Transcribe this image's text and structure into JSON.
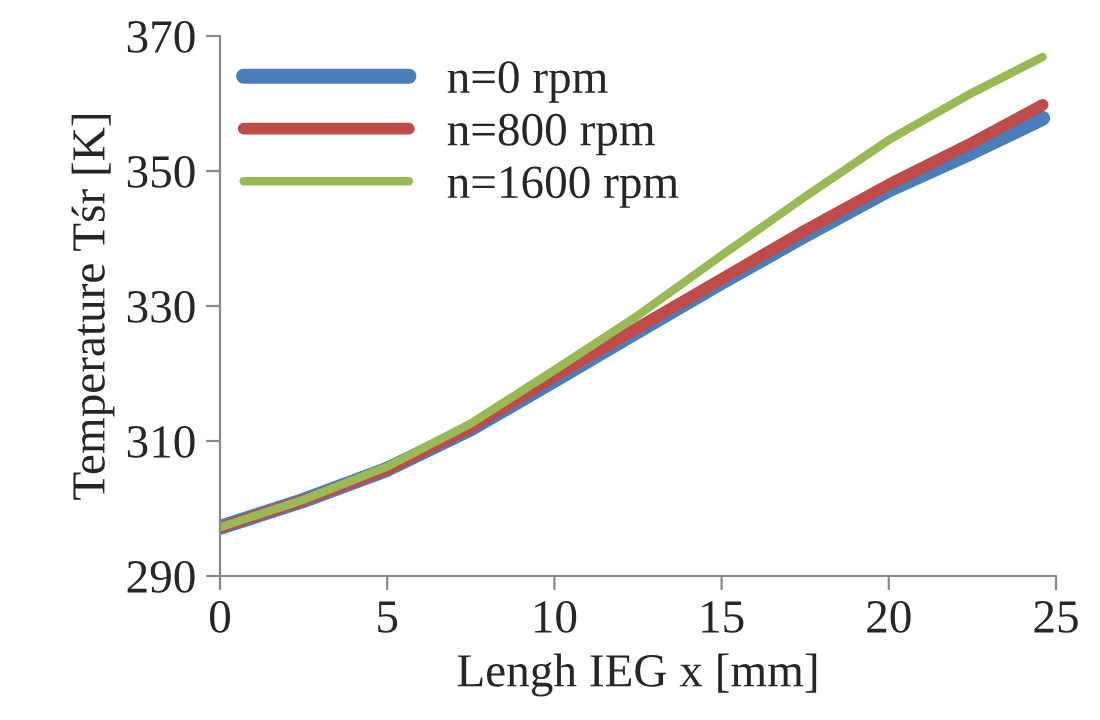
{
  "chart_data": {
    "type": "line",
    "xlabel": "Lengh IEG x [mm]",
    "ylabel": "Temperature Tśr [K]",
    "xlim": [
      0,
      25
    ],
    "xticks": [
      0,
      5,
      10,
      15,
      20,
      25
    ],
    "ylim": [
      290,
      370
    ],
    "yticks": [
      290,
      310,
      330,
      350,
      370
    ],
    "grid": false,
    "legend": "top left",
    "marker": "none",
    "line_style": "solid",
    "series": [
      {
        "name": "n=0 rpm",
        "color": "#4a7ebb",
        "x": [
          0,
          2.5,
          5,
          7.5,
          10,
          12.5,
          15,
          17.5,
          20,
          22.5,
          24.6
        ],
        "values": [
          297.2,
          301.2,
          305.8,
          311.8,
          319,
          326.3,
          333.5,
          340.5,
          347.2,
          352.8,
          357.8
        ]
      },
      {
        "name": "n=800 rpm",
        "color": "#be4b48",
        "x": [
          0,
          2.5,
          5,
          7.5,
          10,
          12.5,
          15,
          17.5,
          20,
          22.5,
          24.6
        ],
        "values": [
          297.2,
          301.2,
          305.8,
          312,
          319.6,
          326.8,
          334,
          341.2,
          348,
          354.2,
          359.8
        ]
      },
      {
        "name": "n=1600 rpm",
        "color": "#98b954",
        "x": [
          0,
          2.5,
          5,
          7.5,
          10,
          12.5,
          15,
          17.5,
          20,
          22.5,
          24.6
        ],
        "values": [
          297.2,
          301.3,
          306.2,
          312.6,
          320.5,
          328.6,
          337.5,
          346.2,
          354.6,
          361.6,
          366.9
        ]
      }
    ]
  }
}
